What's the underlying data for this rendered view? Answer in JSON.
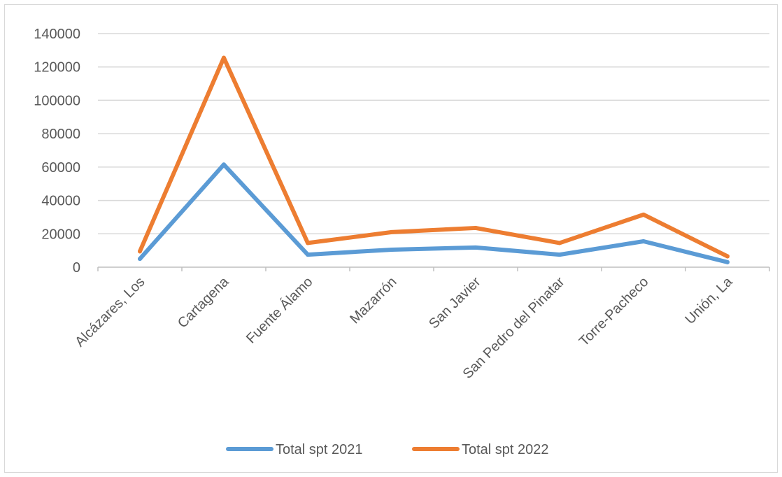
{
  "chart_data": {
    "type": "line",
    "categories": [
      "Alcázares, Los",
      "Cartagena",
      "Fuente Álamo",
      "Mazarrón",
      "San Javier",
      "San Pedro del Pinatar",
      "Torre-Pacheco",
      "Unión, La"
    ],
    "series": [
      {
        "name": "Total spt 2021",
        "color": "#5b9bd5",
        "values": [
          5000,
          61500,
          7500,
          10500,
          11800,
          7500,
          15500,
          3000
        ]
      },
      {
        "name": "Total spt 2022",
        "color": "#ed7d31",
        "values": [
          9500,
          125500,
          14500,
          21000,
          23500,
          14500,
          31500,
          6500
        ]
      }
    ],
    "y_ticks": [
      "0",
      "20000",
      "40000",
      "60000",
      "80000",
      "100000",
      "120000",
      "140000"
    ],
    "ylim": [
      0,
      140000
    ],
    "grid": true,
    "legend": "bottom",
    "title": "",
    "xlabel": "",
    "ylabel": ""
  }
}
